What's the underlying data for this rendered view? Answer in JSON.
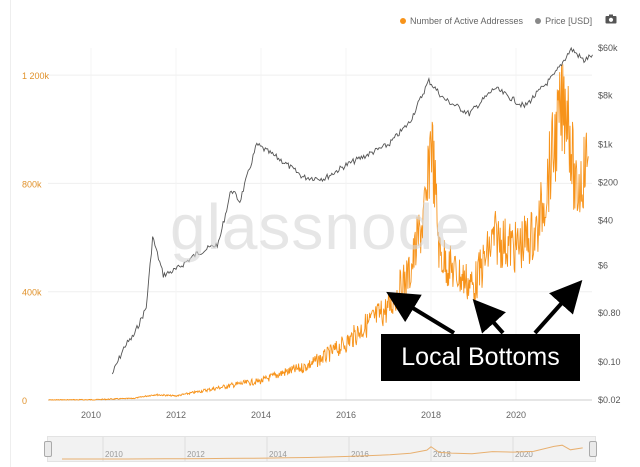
{
  "legend": {
    "active_label": "Number of Active Addresses",
    "price_label": "Price [USD]",
    "active_color": "#f7931a",
    "price_color": "#888888"
  },
  "toolbar": {
    "camera_icon": "camera-icon"
  },
  "watermark": "glassnode",
  "annotation": {
    "text": "Local Bottoms"
  },
  "navigator": {
    "years": [
      "2010",
      "2012",
      "2014",
      "2016",
      "2018",
      "2020"
    ]
  },
  "chart_data": {
    "type": "line",
    "title": "",
    "xlabel": "",
    "ylabel_left": "",
    "ylabel_right": "",
    "x_ticks": [
      "2010",
      "2012",
      "2014",
      "2016",
      "2018",
      "2020"
    ],
    "y_left_ticks": [
      "0",
      "400k",
      "800k",
      "1 200k"
    ],
    "y_left_range": [
      0,
      1300000
    ],
    "y_right_ticks": [
      "$0.02",
      "$0.10",
      "$0.80",
      "$6",
      "$40",
      "$200",
      "$1k",
      "$8k",
      "$60k"
    ],
    "y_right_scale": "log",
    "y_right_range": [
      0.02,
      60000
    ],
    "grid": true,
    "legend_position": "top-right",
    "series": [
      {
        "name": "Number of Active Addresses",
        "axis": "left",
        "color": "#f7931a",
        "x": [
          2009.0,
          2010.0,
          2011.0,
          2011.5,
          2012.0,
          2012.5,
          2013.0,
          2013.5,
          2014.0,
          2014.5,
          2015.0,
          2015.5,
          2016.0,
          2016.5,
          2017.0,
          2017.5,
          2017.9,
          2018.0,
          2018.2,
          2018.5,
          2019.0,
          2019.5,
          2020.0,
          2020.5,
          2021.0,
          2021.2,
          2021.4,
          2021.7
        ],
        "values": [
          0,
          1000,
          6000,
          20000,
          15000,
          30000,
          45000,
          60000,
          70000,
          100000,
          120000,
          160000,
          210000,
          280000,
          340000,
          470000,
          720000,
          1000000,
          540000,
          480000,
          420000,
          600000,
          560000,
          620000,
          1020000,
          1120000,
          750000,
          900000
        ]
      },
      {
        "name": "Price [USD]",
        "axis": "right",
        "color": "#888888",
        "x": [
          2010.5,
          2010.8,
          2011.0,
          2011.3,
          2011.45,
          2011.7,
          2012.0,
          2012.5,
          2013.0,
          2013.3,
          2013.5,
          2013.9,
          2014.5,
          2015.0,
          2015.5,
          2016.0,
          2016.5,
          2017.0,
          2017.5,
          2017.95,
          2018.3,
          2018.9,
          2019.5,
          2020.2,
          2020.9,
          2021.3,
          2021.6,
          2021.8
        ],
        "values": [
          0.06,
          0.2,
          0.3,
          1.0,
          20,
          4,
          5,
          10,
          15,
          150,
          90,
          1000,
          500,
          250,
          240,
          420,
          650,
          1000,
          2600,
          15000,
          7000,
          3700,
          11000,
          5000,
          19000,
          58000,
          35000,
          45000
        ]
      }
    ]
  }
}
